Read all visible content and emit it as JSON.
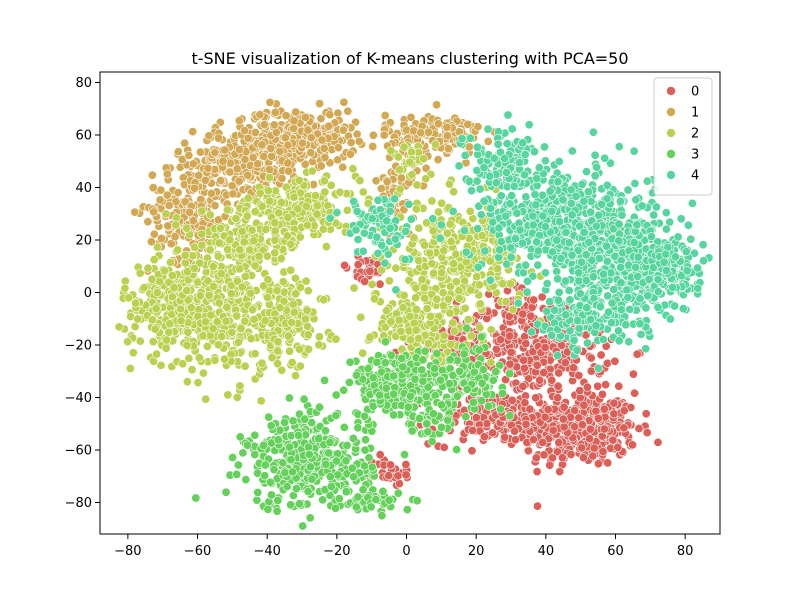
{
  "chart_data": {
    "type": "scatter",
    "title": "t-SNE visualization of K-means clustering with PCA=50",
    "xlabel": "",
    "ylabel": "",
    "xlim": [
      -88,
      90
    ],
    "ylim": [
      -92,
      84
    ],
    "x_ticks": [
      -80,
      -60,
      -40,
      -20,
      0,
      20,
      40,
      60,
      80
    ],
    "y_ticks": [
      -80,
      -60,
      -40,
      -20,
      0,
      20,
      40,
      60,
      80
    ],
    "x_tick_labels": [
      "−80",
      "−60",
      "−40",
      "−20",
      "0",
      "20",
      "40",
      "60",
      "80"
    ],
    "y_tick_labels": [
      "−80",
      "−60",
      "−40",
      "−20",
      "0",
      "20",
      "40",
      "60",
      "80"
    ],
    "grid": false,
    "legend_placement": "top-right",
    "series": [
      {
        "name": "0",
        "color": "#db5f57",
        "regions": [
          {
            "cx": 50,
            "cy": -52,
            "sx": 8,
            "sy": 7,
            "n": 380
          },
          {
            "cx": 40,
            "cy": -22,
            "sx": 9,
            "sy": 8,
            "n": 280
          },
          {
            "cx": 25,
            "cy": -48,
            "sx": 9,
            "sy": 5,
            "n": 170
          },
          {
            "cx": 14,
            "cy": -18,
            "sx": 7,
            "sy": 5,
            "n": 110
          },
          {
            "cx": 30,
            "cy": -5,
            "sx": 5,
            "sy": 5,
            "n": 60
          },
          {
            "cx": -4,
            "cy": -68,
            "sx": 3,
            "sy": 3,
            "n": 25
          },
          {
            "cx": -12,
            "cy": 8,
            "sx": 4,
            "sy": 3,
            "n": 25
          }
        ]
      },
      {
        "name": "1",
        "color": "#d3a853",
        "regions": [
          {
            "cx": -62,
            "cy": 32,
            "sx": 6,
            "sy": 10,
            "n": 200
          },
          {
            "cx": -45,
            "cy": 50,
            "sx": 8,
            "sy": 7,
            "n": 300
          },
          {
            "cx": -30,
            "cy": 60,
            "sx": 8,
            "sy": 5,
            "n": 220
          },
          {
            "cx": 8,
            "cy": 60,
            "sx": 7,
            "sy": 4,
            "n": 140
          },
          {
            "cx": -3,
            "cy": 38,
            "sx": 3,
            "sy": 8,
            "n": 60
          }
        ]
      },
      {
        "name": "2",
        "color": "#b9d14f",
        "regions": [
          {
            "cx": -68,
            "cy": -5,
            "sx": 7,
            "sy": 8,
            "n": 200
          },
          {
            "cx": -52,
            "cy": -5,
            "sx": 9,
            "sy": 14,
            "n": 380
          },
          {
            "cx": -35,
            "cy": -12,
            "sx": 6,
            "sy": 8,
            "n": 150
          },
          {
            "cx": -30,
            "cy": 33,
            "sx": 8,
            "sy": 5,
            "n": 180
          },
          {
            "cx": -45,
            "cy": 20,
            "sx": 8,
            "sy": 6,
            "n": 150
          },
          {
            "cx": 15,
            "cy": 12,
            "sx": 9,
            "sy": 11,
            "n": 340
          },
          {
            "cx": 2,
            "cy": -12,
            "sx": 6,
            "sy": 7,
            "n": 150
          },
          {
            "cx": 2,
            "cy": 50,
            "sx": 3,
            "sy": 4,
            "n": 30
          }
        ]
      },
      {
        "name": "3",
        "color": "#64d15a",
        "regions": [
          {
            "cx": -28,
            "cy": -65,
            "sx": 9,
            "sy": 9,
            "n": 360
          },
          {
            "cx": -10,
            "cy": -80,
            "sx": 4,
            "sy": 2,
            "n": 40
          },
          {
            "cx": -2,
            "cy": -35,
            "sx": 7,
            "sy": 6,
            "n": 260
          },
          {
            "cx": 18,
            "cy": -32,
            "sx": 5,
            "sy": 6,
            "n": 110
          },
          {
            "cx": 8,
            "cy": -48,
            "sx": 4,
            "sy": 4,
            "n": 40
          }
        ]
      },
      {
        "name": "4",
        "color": "#57d59e",
        "regions": [
          {
            "cx": 45,
            "cy": 28,
            "sx": 12,
            "sy": 10,
            "n": 460
          },
          {
            "cx": 62,
            "cy": 10,
            "sx": 10,
            "sy": 11,
            "n": 420
          },
          {
            "cx": 28,
            "cy": 50,
            "sx": 6,
            "sy": 6,
            "n": 120
          },
          {
            "cx": 75,
            "cy": 10,
            "sx": 4,
            "sy": 5,
            "n": 80
          },
          {
            "cx": -8,
            "cy": 25,
            "sx": 5,
            "sy": 7,
            "n": 80
          },
          {
            "cx": 52,
            "cy": -10,
            "sx": 8,
            "sy": 5,
            "n": 120
          }
        ]
      }
    ]
  }
}
